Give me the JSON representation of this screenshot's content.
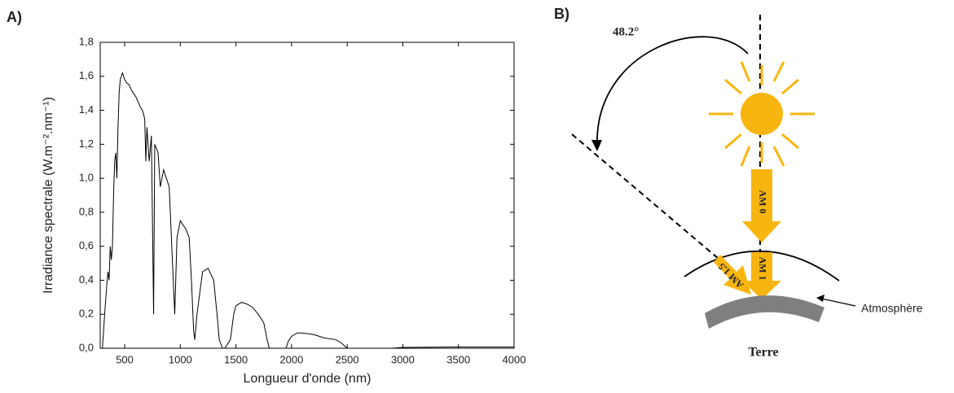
{
  "panels": {
    "a": "A)",
    "b": "B)"
  },
  "chart_data": {
    "type": "line",
    "xlabel": "Longueur d'onde (nm)",
    "ylabel": "Irradiance spectrale (W.m⁻².nm⁻¹)",
    "color": "#000000",
    "xlim": [
      280,
      4000
    ],
    "ylim": [
      0,
      1.8
    ],
    "xticks": [
      500,
      1000,
      1500,
      2000,
      2500,
      3000,
      3500,
      4000
    ],
    "yticks": [
      {
        "value": 0,
        "label": "0,0"
      },
      {
        "value": 0.2,
        "label": "0,2"
      },
      {
        "value": 0.4,
        "label": "0,4"
      },
      {
        "value": 0.6,
        "label": "0,6"
      },
      {
        "value": 0.8,
        "label": "0,8"
      },
      {
        "value": 1.0,
        "label": "1,0"
      },
      {
        "value": 1.2,
        "label": "1,2"
      },
      {
        "value": 1.4,
        "label": "1,4"
      },
      {
        "value": 1.6,
        "label": "1,6"
      },
      {
        "value": 1.8,
        "label": "1,8"
      }
    ],
    "x": [
      280,
      300,
      320,
      340,
      350,
      360,
      370,
      380,
      390,
      400,
      410,
      420,
      430,
      440,
      450,
      460,
      470,
      480,
      490,
      500,
      520,
      540,
      560,
      580,
      600,
      620,
      640,
      660,
      680,
      690,
      700,
      720,
      740,
      760,
      770,
      800,
      820,
      850,
      900,
      930,
      950,
      970,
      1000,
      1050,
      1080,
      1100,
      1120,
      1130,
      1150,
      1200,
      1250,
      1300,
      1330,
      1350,
      1380,
      1400,
      1420,
      1450,
      1480,
      1500,
      1550,
      1600,
      1650,
      1700,
      1750,
      1780,
      1800,
      1950,
      1970,
      2000,
      2050,
      2100,
      2200,
      2300,
      2400,
      2450,
      2500,
      2900,
      3000,
      3500,
      4000
    ],
    "y": [
      0,
      0,
      0.2,
      0.38,
      0.45,
      0.4,
      0.6,
      0.52,
      0.6,
      0.9,
      1.1,
      1.15,
      1.0,
      1.3,
      1.5,
      1.58,
      1.6,
      1.62,
      1.6,
      1.58,
      1.56,
      1.55,
      1.52,
      1.5,
      1.48,
      1.45,
      1.42,
      1.4,
      1.35,
      1.1,
      1.3,
      1.1,
      1.25,
      0.2,
      1.2,
      1.15,
      0.95,
      1.05,
      0.95,
      0.5,
      0.2,
      0.65,
      0.75,
      0.7,
      0.65,
      0.4,
      0.1,
      0.05,
      0.2,
      0.45,
      0.47,
      0.4,
      0.2,
      0.05,
      0,
      0,
      0.02,
      0.05,
      0.2,
      0.25,
      0.27,
      0.26,
      0.24,
      0.2,
      0.15,
      0.05,
      0,
      0,
      0.04,
      0.07,
      0.09,
      0.09,
      0.08,
      0.06,
      0.05,
      0.03,
      0,
      0,
      0.005,
      0.008,
      0.008
    ]
  },
  "diagram": {
    "angle": "48.2°",
    "am0": "AM 0",
    "am15": "AM 1.5",
    "am1": "AM 1",
    "atmosphere": "Atmosphère",
    "earth": "Terre"
  }
}
